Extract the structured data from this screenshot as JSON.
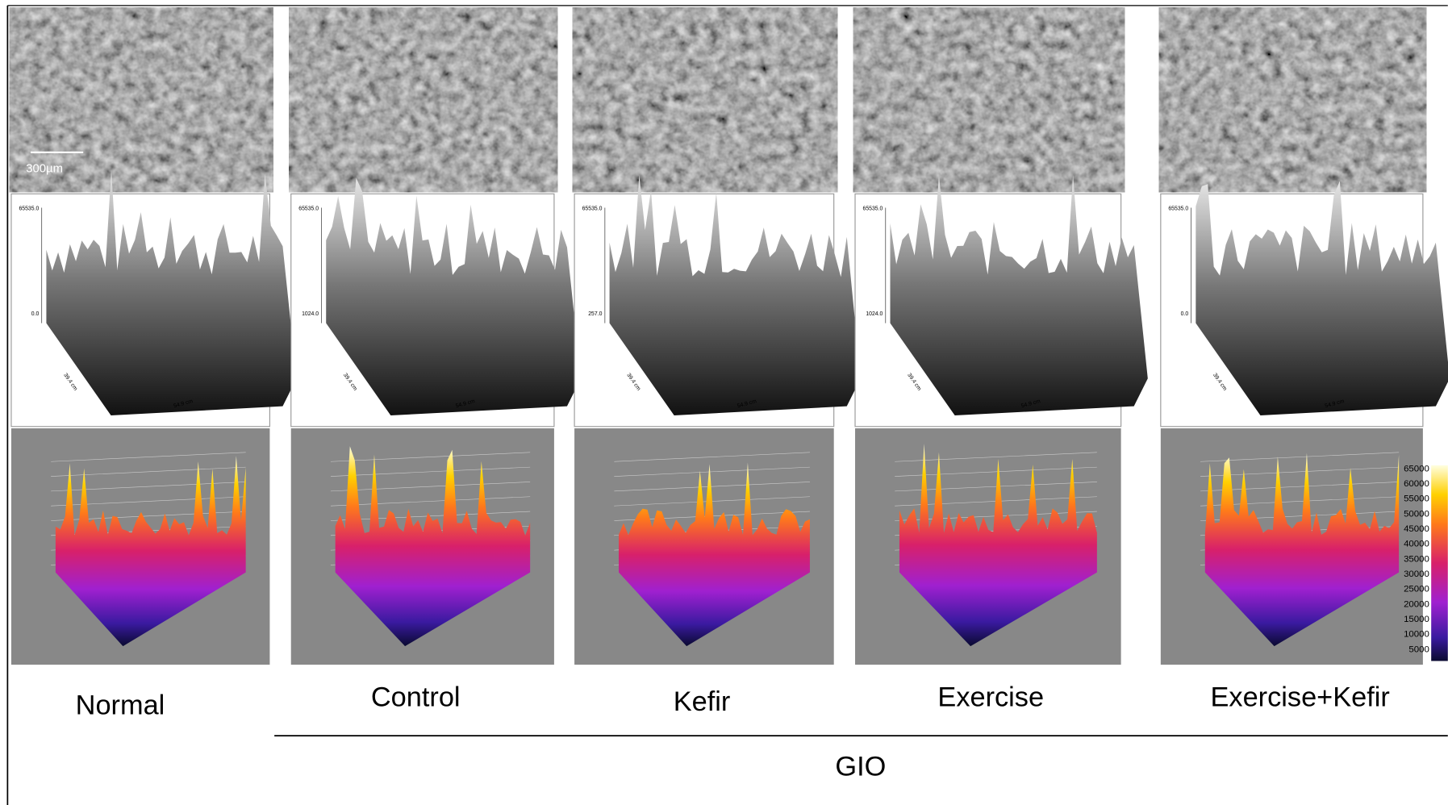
{
  "scale_bar": "300µm",
  "group_label": "GIO",
  "colorbar_ticks": [
    65000,
    60000,
    55000,
    50000,
    45000,
    40000,
    35000,
    30000,
    25000,
    20000,
    15000,
    10000,
    5000
  ],
  "panels": [
    {
      "label": "Normal",
      "height_max": "65535.0",
      "height_min": "0.0",
      "y_dim": "39.4 cm",
      "x_dim": "54.9 cm"
    },
    {
      "label": "Control",
      "height_max": "65535.0",
      "height_min": "1024.0",
      "y_dim": "39.4 cm",
      "x_dim": "54.9 cm"
    },
    {
      "label": "Kefir",
      "height_max": "65535.0",
      "height_min": "257.0",
      "y_dim": "39.4 cm",
      "x_dim": "54.9 cm"
    },
    {
      "label": "Exercise",
      "height_max": "65535.0",
      "height_min": "1024.0",
      "y_dim": "39.4 cm",
      "x_dim": "54.9 cm"
    },
    {
      "label": "Exercise+Kefir",
      "height_max": "65535.0",
      "height_min": "0.0",
      "y_dim": "39.4 cm",
      "x_dim": "54.9 cm"
    }
  ]
}
